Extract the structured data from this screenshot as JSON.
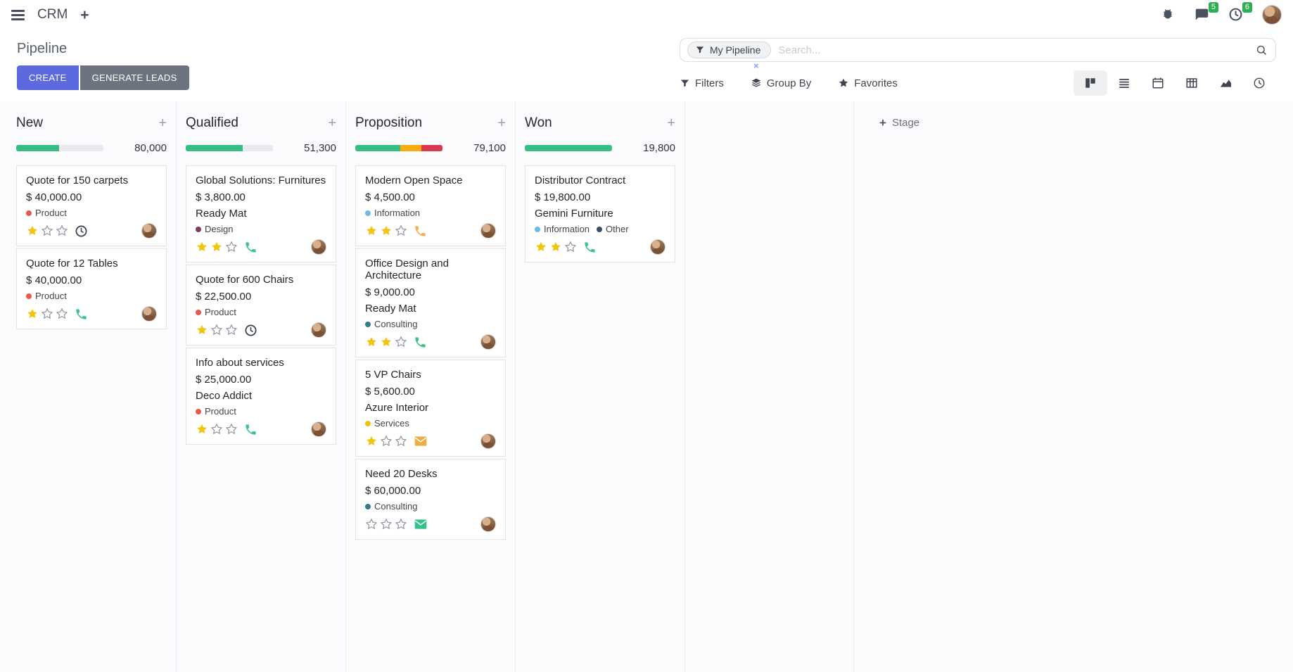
{
  "navbar": {
    "app_name": "CRM",
    "messages_badge": "5",
    "activities_badge": "6"
  },
  "control_panel": {
    "title": "Pipeline",
    "create_label": "CREATE",
    "generate_leads_label": "GENERATE LEADS",
    "search": {
      "facet_label": "My Pipeline",
      "placeholder": "Search...",
      "remove_facet": "×"
    },
    "filters_label": "Filters",
    "group_by_label": "Group By",
    "favorites_label": "Favorites"
  },
  "board": {
    "add_stage_label": "Stage",
    "columns": [
      {
        "title": "New",
        "total": "80,000",
        "progress": [
          {
            "color": "#35be83",
            "pct": 49
          },
          {
            "color": "#e9eaee",
            "pct": 51
          }
        ],
        "cards": [
          {
            "title": "Quote for 150 carpets",
            "amount": "$ 40,000.00",
            "company": "",
            "tags": [
              {
                "label": "Product",
                "color": "#e8584f"
              }
            ],
            "stars": 1,
            "activity": {
              "type": "clock",
              "color": "#32404e"
            }
          },
          {
            "title": "Quote for 12 Tables",
            "amount": "$ 40,000.00",
            "company": "",
            "tags": [
              {
                "label": "Product",
                "color": "#e8584f"
              }
            ],
            "stars": 1,
            "activity": {
              "type": "phone",
              "color": "#3cc389"
            }
          }
        ]
      },
      {
        "title": "Qualified",
        "total": "51,300",
        "progress": [
          {
            "color": "#35be83",
            "pct": 65
          },
          {
            "color": "#e9eaee",
            "pct": 35
          }
        ],
        "cards": [
          {
            "title": "Global Solutions: Furnitures",
            "amount": "$ 3,800.00",
            "company": "Ready Mat",
            "tags": [
              {
                "label": "Design",
                "color": "#7d3c64"
              }
            ],
            "stars": 2,
            "activity": {
              "type": "phone",
              "color": "#3cc389"
            }
          },
          {
            "title": "Quote for 600 Chairs",
            "amount": "$ 22,500.00",
            "company": "",
            "tags": [
              {
                "label": "Product",
                "color": "#e8584f"
              }
            ],
            "stars": 1,
            "activity": {
              "type": "clock",
              "color": "#32404e"
            }
          },
          {
            "title": "Info about services",
            "amount": "$ 25,000.00",
            "company": "Deco Addict",
            "tags": [
              {
                "label": "Product",
                "color": "#e8584f"
              }
            ],
            "stars": 1,
            "activity": {
              "type": "phone",
              "color": "#3cc389"
            }
          }
        ]
      },
      {
        "title": "Proposition",
        "total": "79,100",
        "progress": [
          {
            "color": "#35be83",
            "pct": 52
          },
          {
            "color": "#f6ac0f",
            "pct": 24
          },
          {
            "color": "#d8394e",
            "pct": 24
          }
        ],
        "cards": [
          {
            "title": "Modern Open Space",
            "amount": "$ 4,500.00",
            "company": "",
            "tags": [
              {
                "label": "Information",
                "color": "#6fb9e8"
              }
            ],
            "stars": 2,
            "activity": {
              "type": "phone",
              "color": "#f2ae55"
            }
          },
          {
            "title": "Office Design and Architecture",
            "amount": "$ 9,000.00",
            "company": "Ready Mat",
            "tags": [
              {
                "label": "Consulting",
                "color": "#2e7d8a"
              }
            ],
            "stars": 2,
            "activity": {
              "type": "phone",
              "color": "#3cc389"
            }
          },
          {
            "title": "5 VP Chairs",
            "amount": "$ 5,600.00",
            "company": "Azure Interior",
            "tags": [
              {
                "label": "Services",
                "color": "#edc213"
              }
            ],
            "stars": 1,
            "activity": {
              "type": "envelope",
              "color": "#eead43"
            }
          },
          {
            "title": "Need 20 Desks",
            "amount": "$ 60,000.00",
            "company": "",
            "tags": [
              {
                "label": "Consulting",
                "color": "#2e7d8a"
              }
            ],
            "stars": 0,
            "activity": {
              "type": "envelope",
              "color": "#35c28a"
            }
          }
        ]
      },
      {
        "title": "Won",
        "total": "19,800",
        "progress": [
          {
            "color": "#35be83",
            "pct": 100
          }
        ],
        "cards": [
          {
            "title": "Distributor Contract",
            "amount": "$ 19,800.00",
            "company": "Gemini Furniture",
            "tags": [
              {
                "label": "Information",
                "color": "#6fb9e8"
              },
              {
                "label": "Other",
                "color": "#3a4e63"
              }
            ],
            "stars": 2,
            "activity": {
              "type": "phone",
              "color": "#3cc389"
            }
          }
        ]
      }
    ]
  }
}
